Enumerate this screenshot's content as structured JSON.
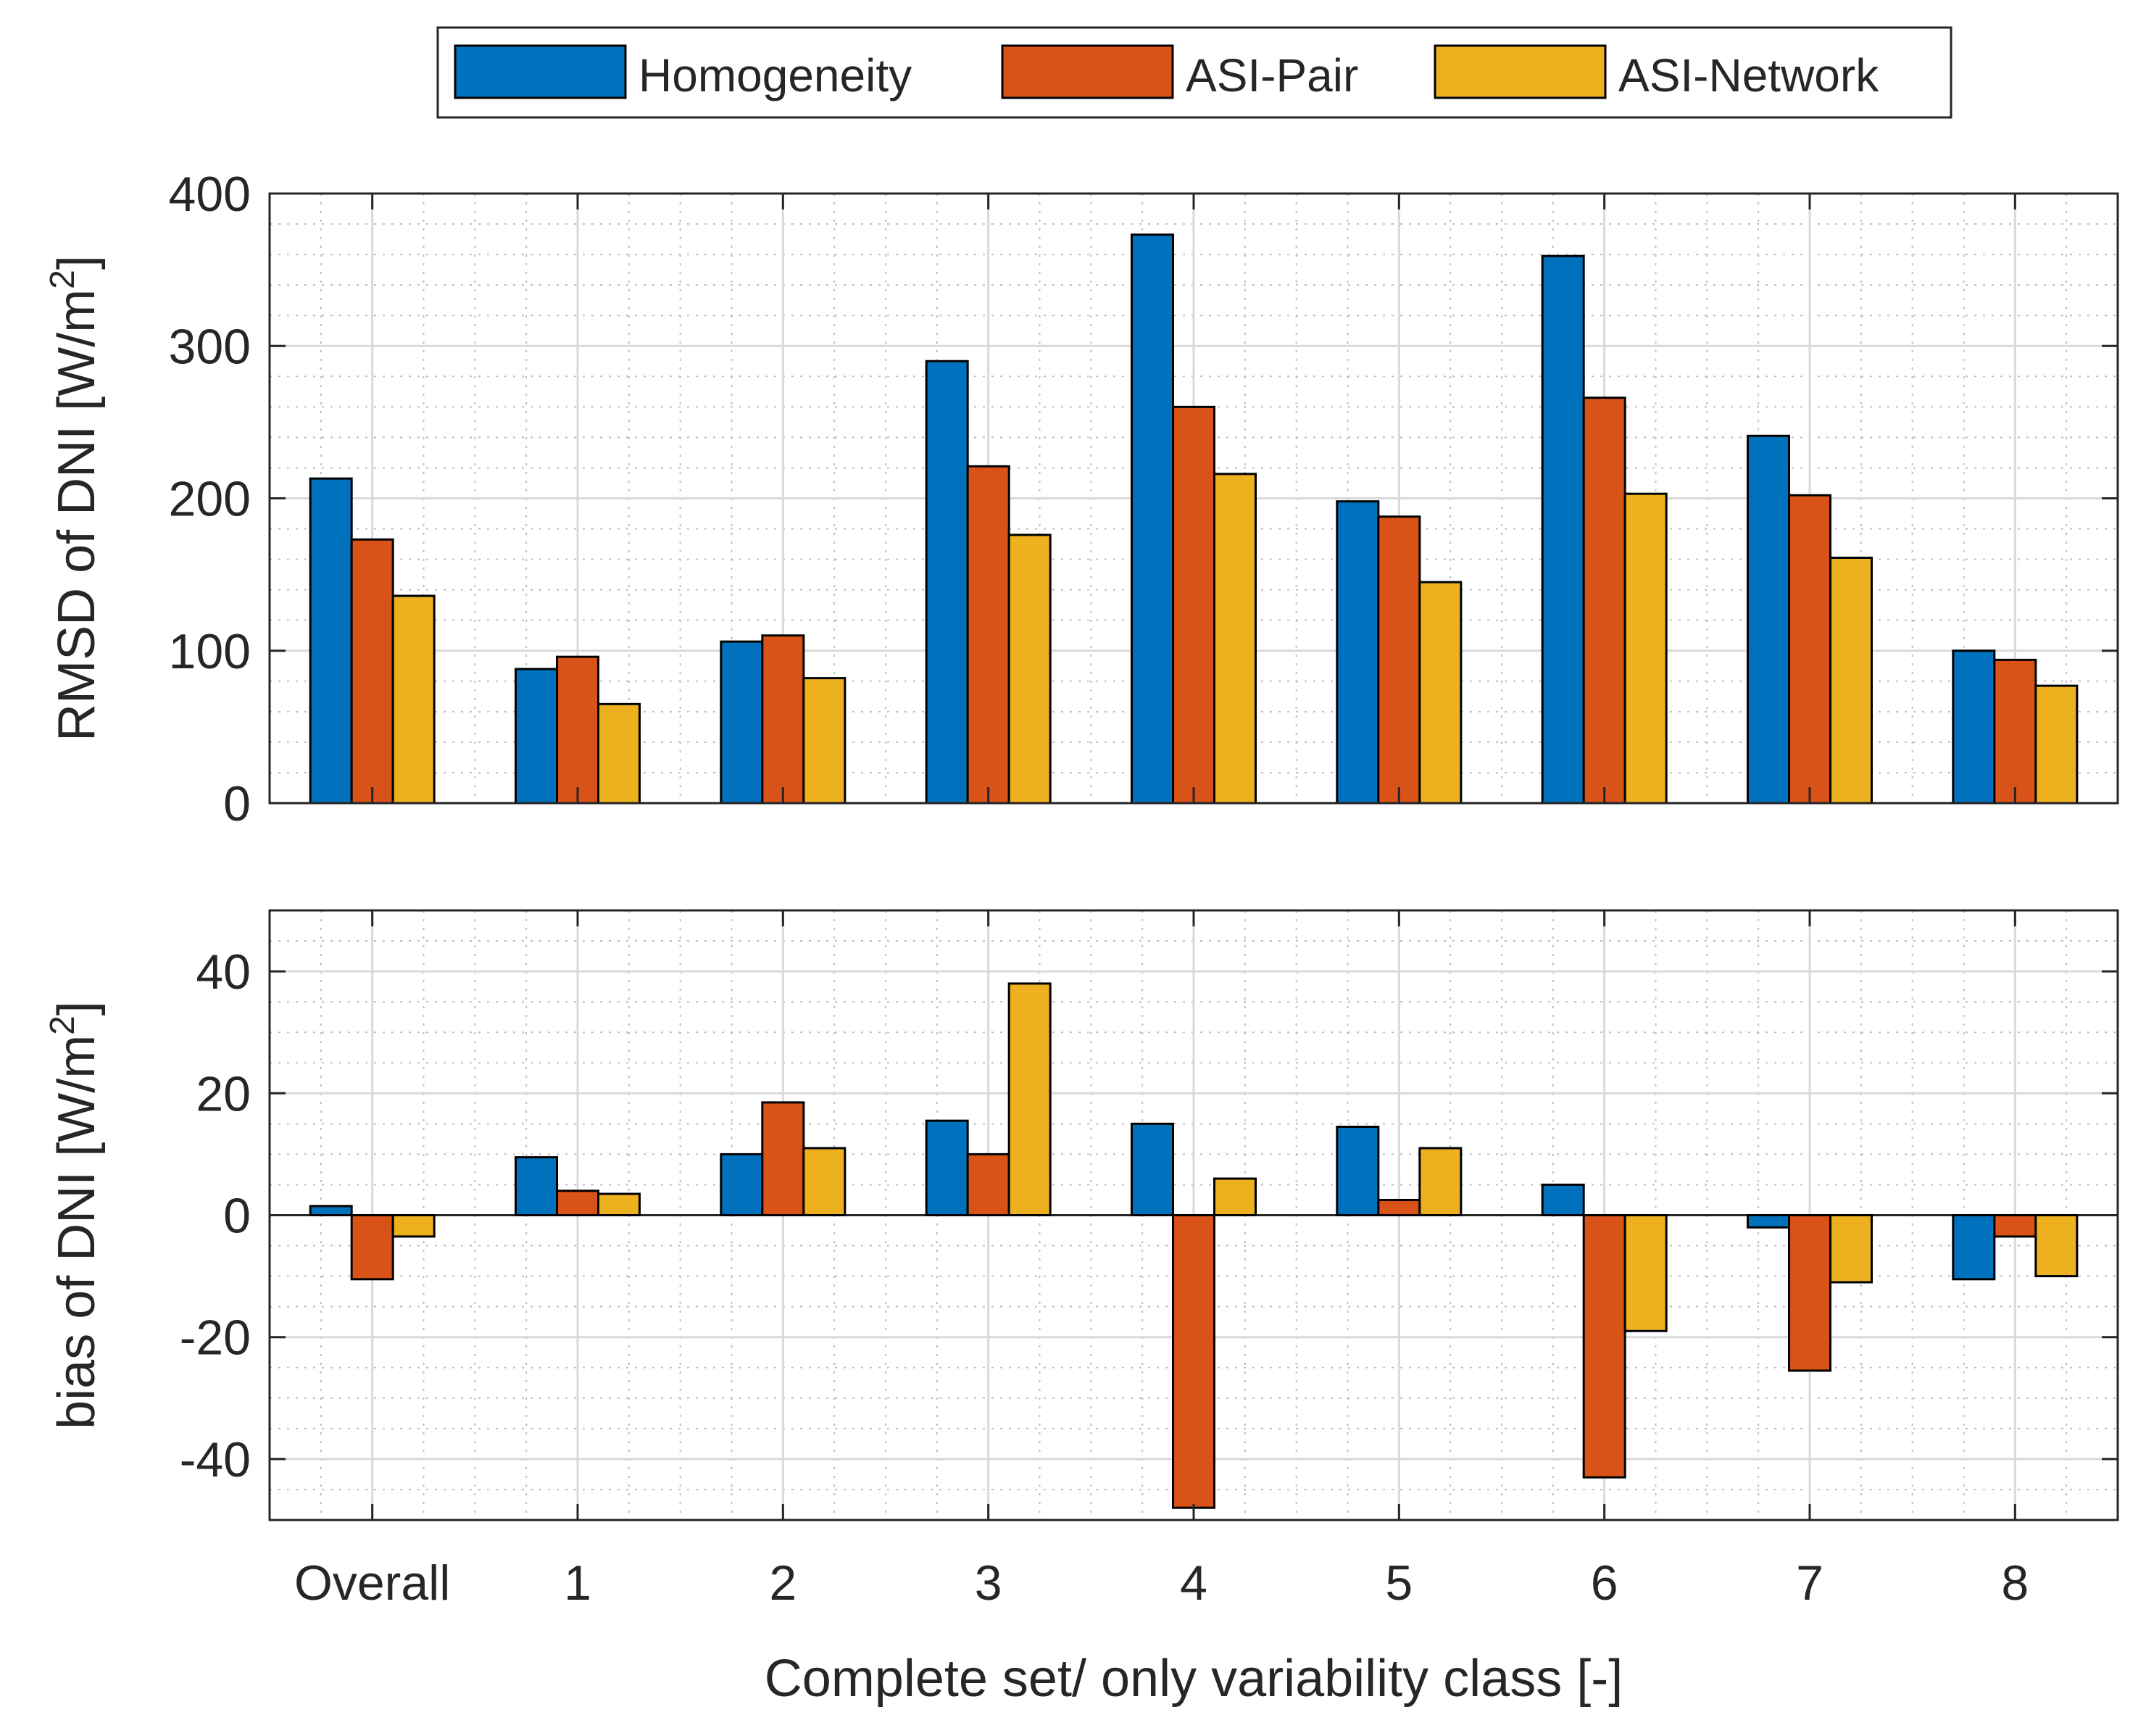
{
  "chart_data": [
    {
      "type": "bar",
      "panel": "top",
      "categories": [
        "Overall",
        "1",
        "2",
        "3",
        "4",
        "5",
        "6",
        "7",
        "8"
      ],
      "series": [
        {
          "name": "Homogeneity",
          "values": [
            213,
            88,
            106,
            290,
            373,
            198,
            359,
            241,
            100
          ]
        },
        {
          "name": "ASI-Pair",
          "values": [
            173,
            96,
            110,
            221,
            260,
            188,
            266,
            202,
            94
          ]
        },
        {
          "name": "ASI-Network",
          "values": [
            136,
            65,
            82,
            176,
            216,
            145,
            203,
            161,
            77
          ]
        }
      ],
      "ylabel": "RMSD of DNI [W/m",
      "ylabel_sup": "2",
      "ylabel_end": "]",
      "ylim": [
        0,
        400
      ],
      "yticks": [
        "0",
        "100",
        "200",
        "300",
        "400"
      ],
      "ytick_values": [
        0,
        100,
        200,
        300,
        400
      ],
      "grid": true,
      "minor_grid": true
    },
    {
      "type": "bar",
      "panel": "bottom",
      "categories": [
        "Overall",
        "1",
        "2",
        "3",
        "4",
        "5",
        "6",
        "7",
        "8"
      ],
      "series": [
        {
          "name": "Homogeneity",
          "values": [
            1.5,
            9.5,
            10,
            15.5,
            15,
            14.5,
            5,
            -2,
            -10.5
          ]
        },
        {
          "name": "ASI-Pair",
          "values": [
            -10.5,
            4,
            18.5,
            10,
            -48,
            2.5,
            -43,
            -25.5,
            -3.5
          ]
        },
        {
          "name": "ASI-Network",
          "values": [
            -3.5,
            3.5,
            11,
            38,
            6,
            11,
            -19,
            -11,
            -10
          ]
        }
      ],
      "ylabel": "bias of DNI  [W/m",
      "ylabel_sup": "2",
      "ylabel_end": "]",
      "ylim": [
        -50,
        50
      ],
      "yticks": [
        "-40",
        "-20",
        "0",
        "20",
        "40"
      ],
      "ytick_values": [
        -40,
        -20,
        0,
        20,
        40
      ],
      "xlabel": "Complete set/ only variability class [-]",
      "grid": true,
      "minor_grid": true
    }
  ],
  "legend": {
    "placement": "top-center",
    "orientation": "horizontal",
    "entries": [
      "Homogeneity",
      "ASI-Pair",
      "ASI-Network"
    ]
  },
  "colors": {
    "Homogeneity": "#0072BD",
    "ASI-Pair": "#D95319",
    "ASI-Network": "#EDB120"
  }
}
